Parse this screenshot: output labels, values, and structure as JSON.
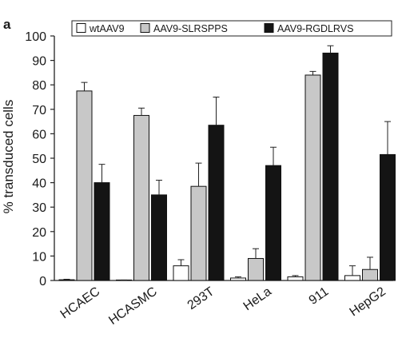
{
  "panel_label": "a",
  "chart_data": {
    "type": "bar",
    "title": "",
    "xlabel": "",
    "ylabel": "% transduced cells",
    "ylim": [
      0,
      100
    ],
    "yticks": [
      0,
      10,
      20,
      30,
      40,
      50,
      60,
      70,
      80,
      90,
      100
    ],
    "grid": false,
    "legend_placement": "top",
    "error_bars": true,
    "categories": [
      "HCAEC",
      "HCASMC",
      "293T",
      "HeLa",
      "911",
      "HepG2"
    ],
    "series": [
      {
        "name": "wtAAV9",
        "color": "#ffffff",
        "values": [
          0.3,
          0.1,
          6,
          1,
          1.5,
          2
        ],
        "errors": [
          0.2,
          0.1,
          2.5,
          0.5,
          0.5,
          4
        ]
      },
      {
        "name": "AAV9-SLRSPPS",
        "color": "#c8c8c8",
        "values": [
          77.5,
          67.5,
          38.5,
          9,
          84,
          4.5
        ],
        "errors": [
          3.5,
          3,
          9.5,
          4,
          1.5,
          5
        ]
      },
      {
        "name": "AAV9-RGDLRVS",
        "color": "#141414",
        "values": [
          40,
          35,
          63.5,
          47,
          93,
          51.5
        ],
        "errors": [
          7.5,
          6,
          11.5,
          7.5,
          3,
          13.5
        ]
      }
    ]
  }
}
